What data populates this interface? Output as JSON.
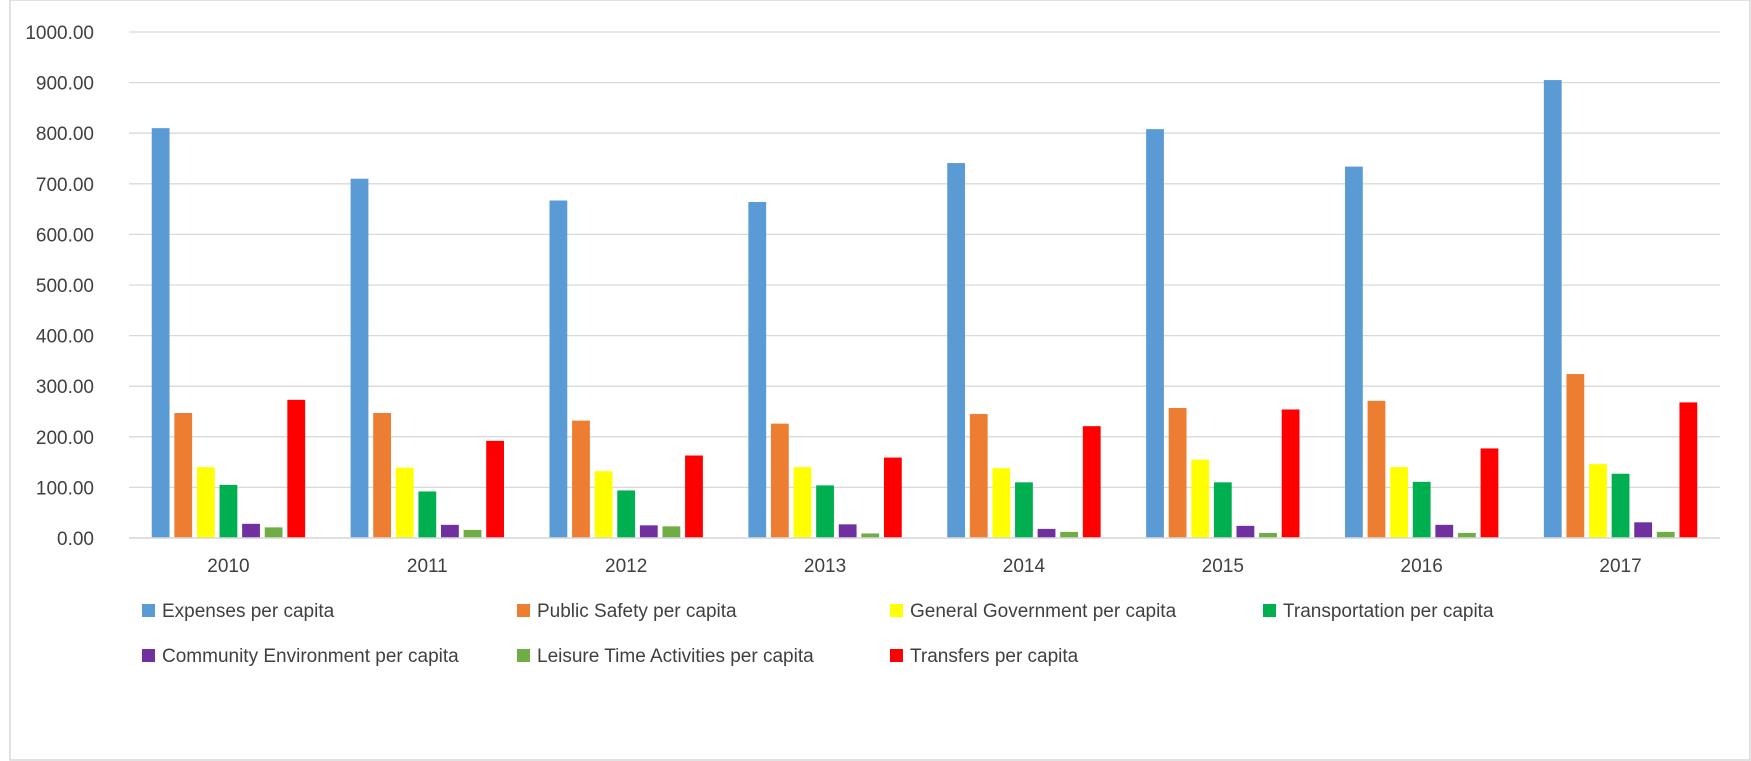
{
  "chart_data": {
    "type": "bar",
    "categories": [
      "2010",
      "2011",
      "2012",
      "2013",
      "2014",
      "2015",
      "2016",
      "2017"
    ],
    "ylim": [
      0,
      1000
    ],
    "yticks": [
      "0.00",
      "100.00",
      "200.00",
      "300.00",
      "400.00",
      "500.00",
      "600.00",
      "700.00",
      "800.00",
      "900.00",
      "1000.00"
    ],
    "grid": true,
    "legend_position": "bottom",
    "series": [
      {
        "name": "Expenses per capita",
        "color": "#5B9BD5",
        "values": [
          810,
          710,
          667,
          664,
          741,
          808,
          734,
          905
        ]
      },
      {
        "name": "Public Safety per capita",
        "color": "#ED7D31",
        "values": [
          247,
          247,
          232,
          226,
          245,
          257,
          271,
          324
        ]
      },
      {
        "name": "General Government per capita",
        "color": "#FFFF00",
        "values": [
          140,
          139,
          132,
          140,
          138,
          155,
          140,
          146
        ]
      },
      {
        "name": "Transportation per capita",
        "color": "#00B050",
        "values": [
          105,
          92,
          94,
          104,
          110,
          110,
          111,
          127
        ]
      },
      {
        "name": "Community Environment per capita",
        "color": "#7030A0",
        "values": [
          28,
          26,
          25,
          27,
          18,
          24,
          26,
          31
        ]
      },
      {
        "name": "Leisure Time Activities per capita",
        "color": "#70AD47",
        "values": [
          21,
          16,
          23,
          9,
          12,
          10,
          10,
          12
        ]
      },
      {
        "name": "Transfers per capita",
        "color": "#FF0000",
        "values": [
          273,
          192,
          163,
          159,
          221,
          254,
          177,
          268
        ]
      }
    ]
  }
}
